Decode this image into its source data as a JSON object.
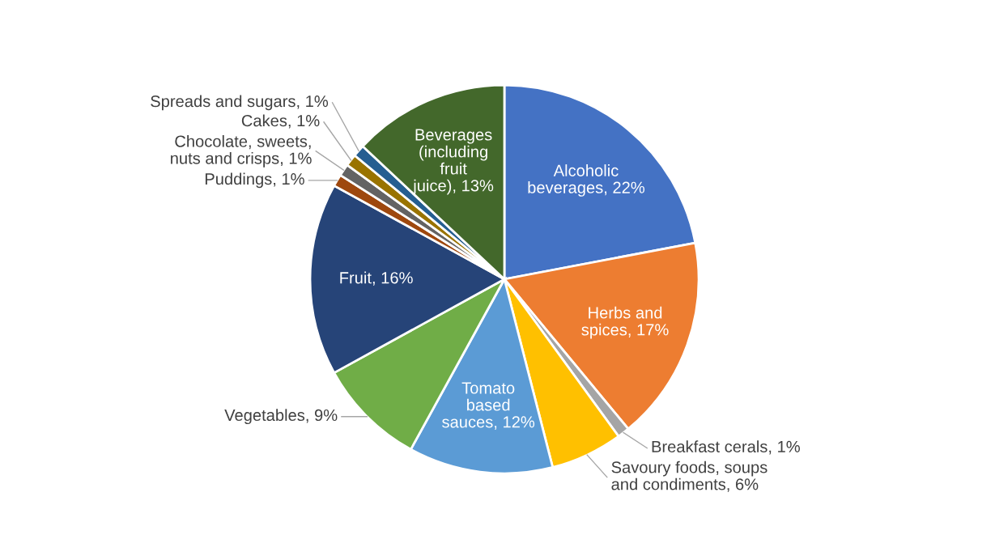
{
  "chart_data": {
    "type": "pie",
    "categories": [
      "Alcoholic beverages",
      "Herbs and spices",
      "Breakfast cerals",
      "Savoury foods, soups and condiments",
      "Tomato based sauces",
      "Vegetables",
      "Fruit",
      "Puddings",
      "Chocolate, sweets, nuts and crisps",
      "Cakes",
      "Spreads and sugars",
      "Beverages (including fruit juice)"
    ],
    "values": [
      22,
      17,
      1,
      6,
      12,
      9,
      16,
      1,
      1,
      1,
      1,
      13
    ],
    "colors": [
      "#4472c4",
      "#ed7d31",
      "#a5a5a5",
      "#ffc000",
      "#5b9bd5",
      "#70ad47",
      "#264478",
      "#9e480e",
      "#636363",
      "#997300",
      "#255e91",
      "#43682b"
    ],
    "value_labels": [
      "22%",
      "17%",
      "1%",
      "6%",
      "12%",
      "9%",
      "16%",
      "1%",
      "1%",
      "1%",
      "1%",
      "13%"
    ]
  }
}
